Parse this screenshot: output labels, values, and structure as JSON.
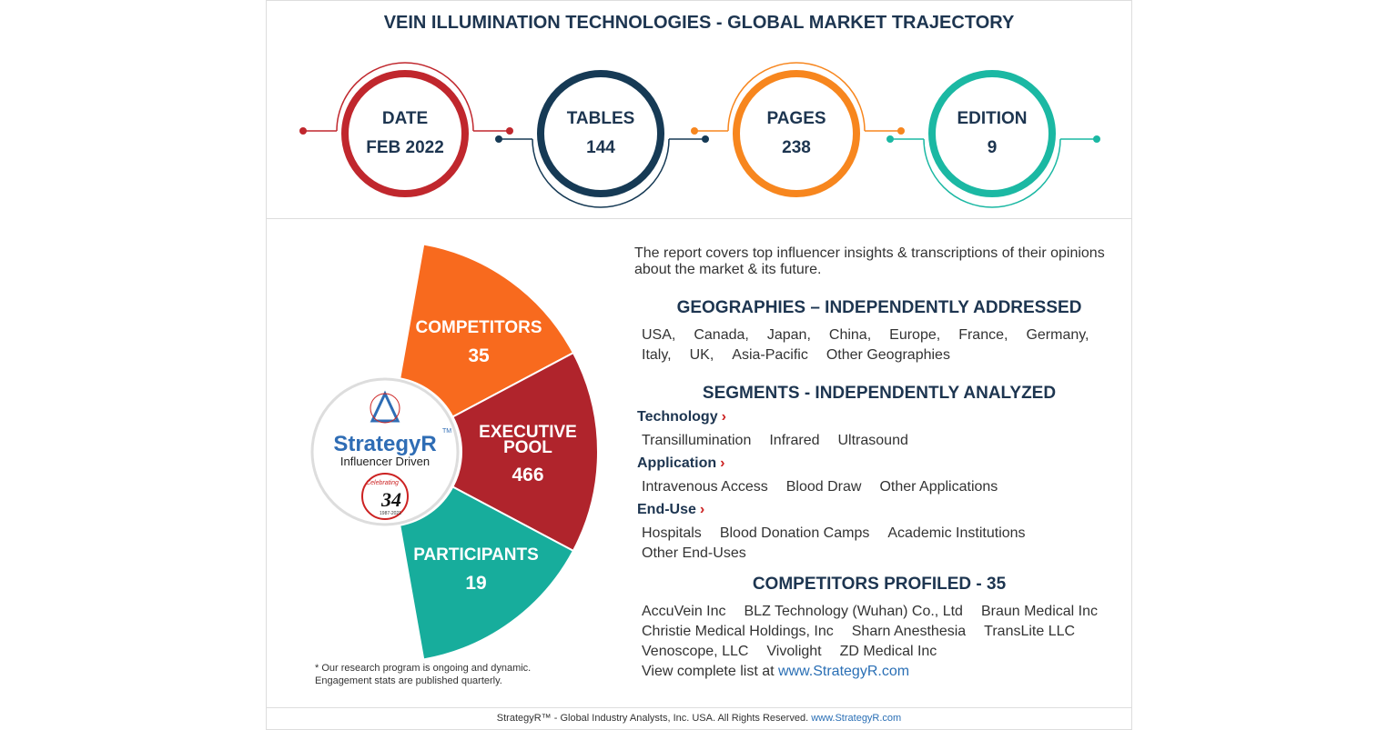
{
  "title": "VEIN ILLUMINATION TECHNOLOGIES - GLOBAL MARKET TRAJECTORY",
  "stats": [
    {
      "label": "DATE",
      "value": "FEB 2022"
    },
    {
      "label": "TABLES",
      "value": "144"
    },
    {
      "label": "PAGES",
      "value": "238"
    },
    {
      "label": "EDITION",
      "value": "9"
    }
  ],
  "engagement": [
    {
      "label": "COMPETITORS",
      "value": 35
    },
    {
      "label": "EXECUTIVE POOL",
      "value": 466
    },
    {
      "label": "PARTICIPANTS",
      "value": 19
    }
  ],
  "logo": {
    "name": "StrategyR",
    "tm": "TM",
    "tagline": "Influencer Driven",
    "badge_text": "Celebrating",
    "badge_number": "34",
    "badge_years": "1987-2021"
  },
  "footnote": "* Our research program is ongoing and dynamic. Engagement stats are published quarterly.",
  "intro": "The report covers top influencer insights & transcriptions of their opinions about the market & its future.",
  "geographies": {
    "heading": "GEOGRAPHIES – INDEPENDENTLY ADDRESSED",
    "items": [
      "USA,",
      "Canada,",
      "Japan,",
      "China,",
      "Europe,",
      "France,",
      "Germany,",
      "Italy,",
      "UK,",
      "Asia-Pacific",
      "Other Geographies"
    ]
  },
  "segments": {
    "heading": "SEGMENTS - INDEPENDENTLY ANALYZED",
    "groups": [
      {
        "name": "Technology",
        "items": [
          "Transillumination",
          "Infrared",
          "Ultrasound"
        ]
      },
      {
        "name": "Application",
        "items": [
          "Intravenous Access",
          "Blood Draw",
          "Other Applications"
        ]
      },
      {
        "name": "End-Use",
        "items": [
          "Hospitals",
          "Blood Donation Camps",
          "Academic Institutions",
          "Other End-Uses"
        ]
      }
    ]
  },
  "competitors": {
    "heading": "COMPETITORS PROFILED - 35",
    "items": [
      "AccuVein Inc",
      "BLZ Technology (Wuhan) Co., Ltd",
      "Braun Medical Inc",
      "Christie Medical Holdings, Inc",
      "Sharn Anesthesia",
      "TransLite LLC",
      "Venoscope, LLC",
      "Vivolight",
      "ZD Medical Inc"
    ],
    "more_text": "View complete list at",
    "more_link": "www.StrategyR.com"
  },
  "footer": {
    "text": "StrategyR™ - Global Industry Analysts, Inc. USA. All Rights Reserved.",
    "link": "www.StrategyR.com"
  }
}
